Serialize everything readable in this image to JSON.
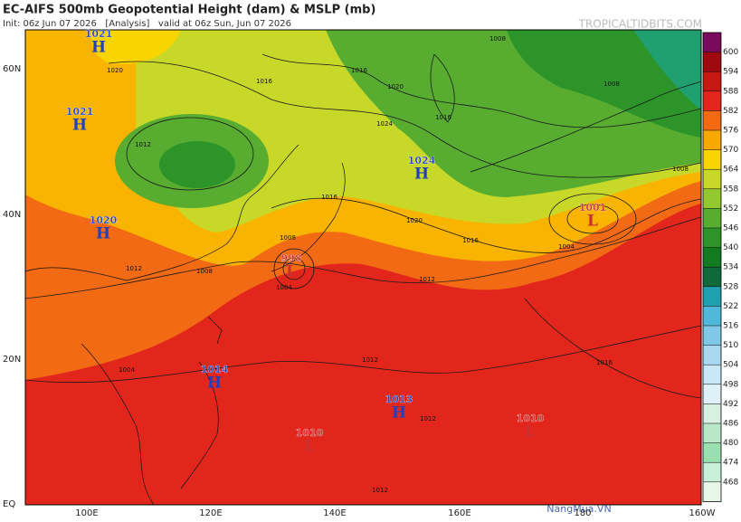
{
  "header": {
    "title": "EC-AIFS 500mb Geopotential Height (dam) & MSLP (mb)",
    "subtitle": "Init: 06z Jun 07 2026   [Analysis]   valid at 06z Sun, Jun 07 2026",
    "source": "TROPICALTIDBITS.COM"
  },
  "map": {
    "lat_labels": [
      "60N",
      "40N",
      "20N",
      "EQ"
    ],
    "lon_labels": [
      "100E",
      "120E",
      "140E",
      "160E",
      "180",
      "160W"
    ],
    "centers": [
      {
        "symbol": "H",
        "pressure": 1021
      },
      {
        "symbol": "H",
        "pressure": 1021
      },
      {
        "symbol": "H",
        "pressure": 1024
      },
      {
        "symbol": "L",
        "pressure": 1001
      },
      {
        "symbol": "H",
        "pressure": 1020
      },
      {
        "symbol": "L",
        "pressure": 998
      },
      {
        "symbol": "H",
        "pressure": 1014
      },
      {
        "symbol": "H",
        "pressure": 1013
      },
      {
        "symbol": "L",
        "pressure": 1010
      },
      {
        "symbol": "L",
        "pressure": 1010
      }
    ],
    "isobar_labels": [
      1008,
      1020,
      1016,
      1016,
      1020,
      1008,
      1024,
      1016,
      1012,
      1016,
      1020,
      1016,
      1008,
      1012,
      1008,
      1004,
      1012,
      1004,
      1008,
      1012,
      1016,
      1012,
      1012,
      1004
    ]
  },
  "colorbar": {
    "levels": [
      600,
      594,
      588,
      582,
      576,
      570,
      564,
      558,
      552,
      546,
      540,
      534,
      528,
      522,
      516,
      510,
      504,
      498,
      492,
      486,
      480,
      474,
      468
    ],
    "colors": [
      "#7a0a5e",
      "#9c0a10",
      "#c41810",
      "#e2261c",
      "#f26a14",
      "#f8a800",
      "#f8d400",
      "#c8d828",
      "#94c830",
      "#58ac30",
      "#2c9428",
      "#127a20",
      "#0e6a3a",
      "#20a0b0",
      "#50b8d8",
      "#80c8e8",
      "#a8d8f0",
      "#c8e8f8",
      "#e0f0f8",
      "#d8f0e0",
      "#b8e8c8",
      "#98e0b0",
      "#c8f0d8",
      "#e8f8e8"
    ]
  },
  "watermark": "NangMua.VN"
}
